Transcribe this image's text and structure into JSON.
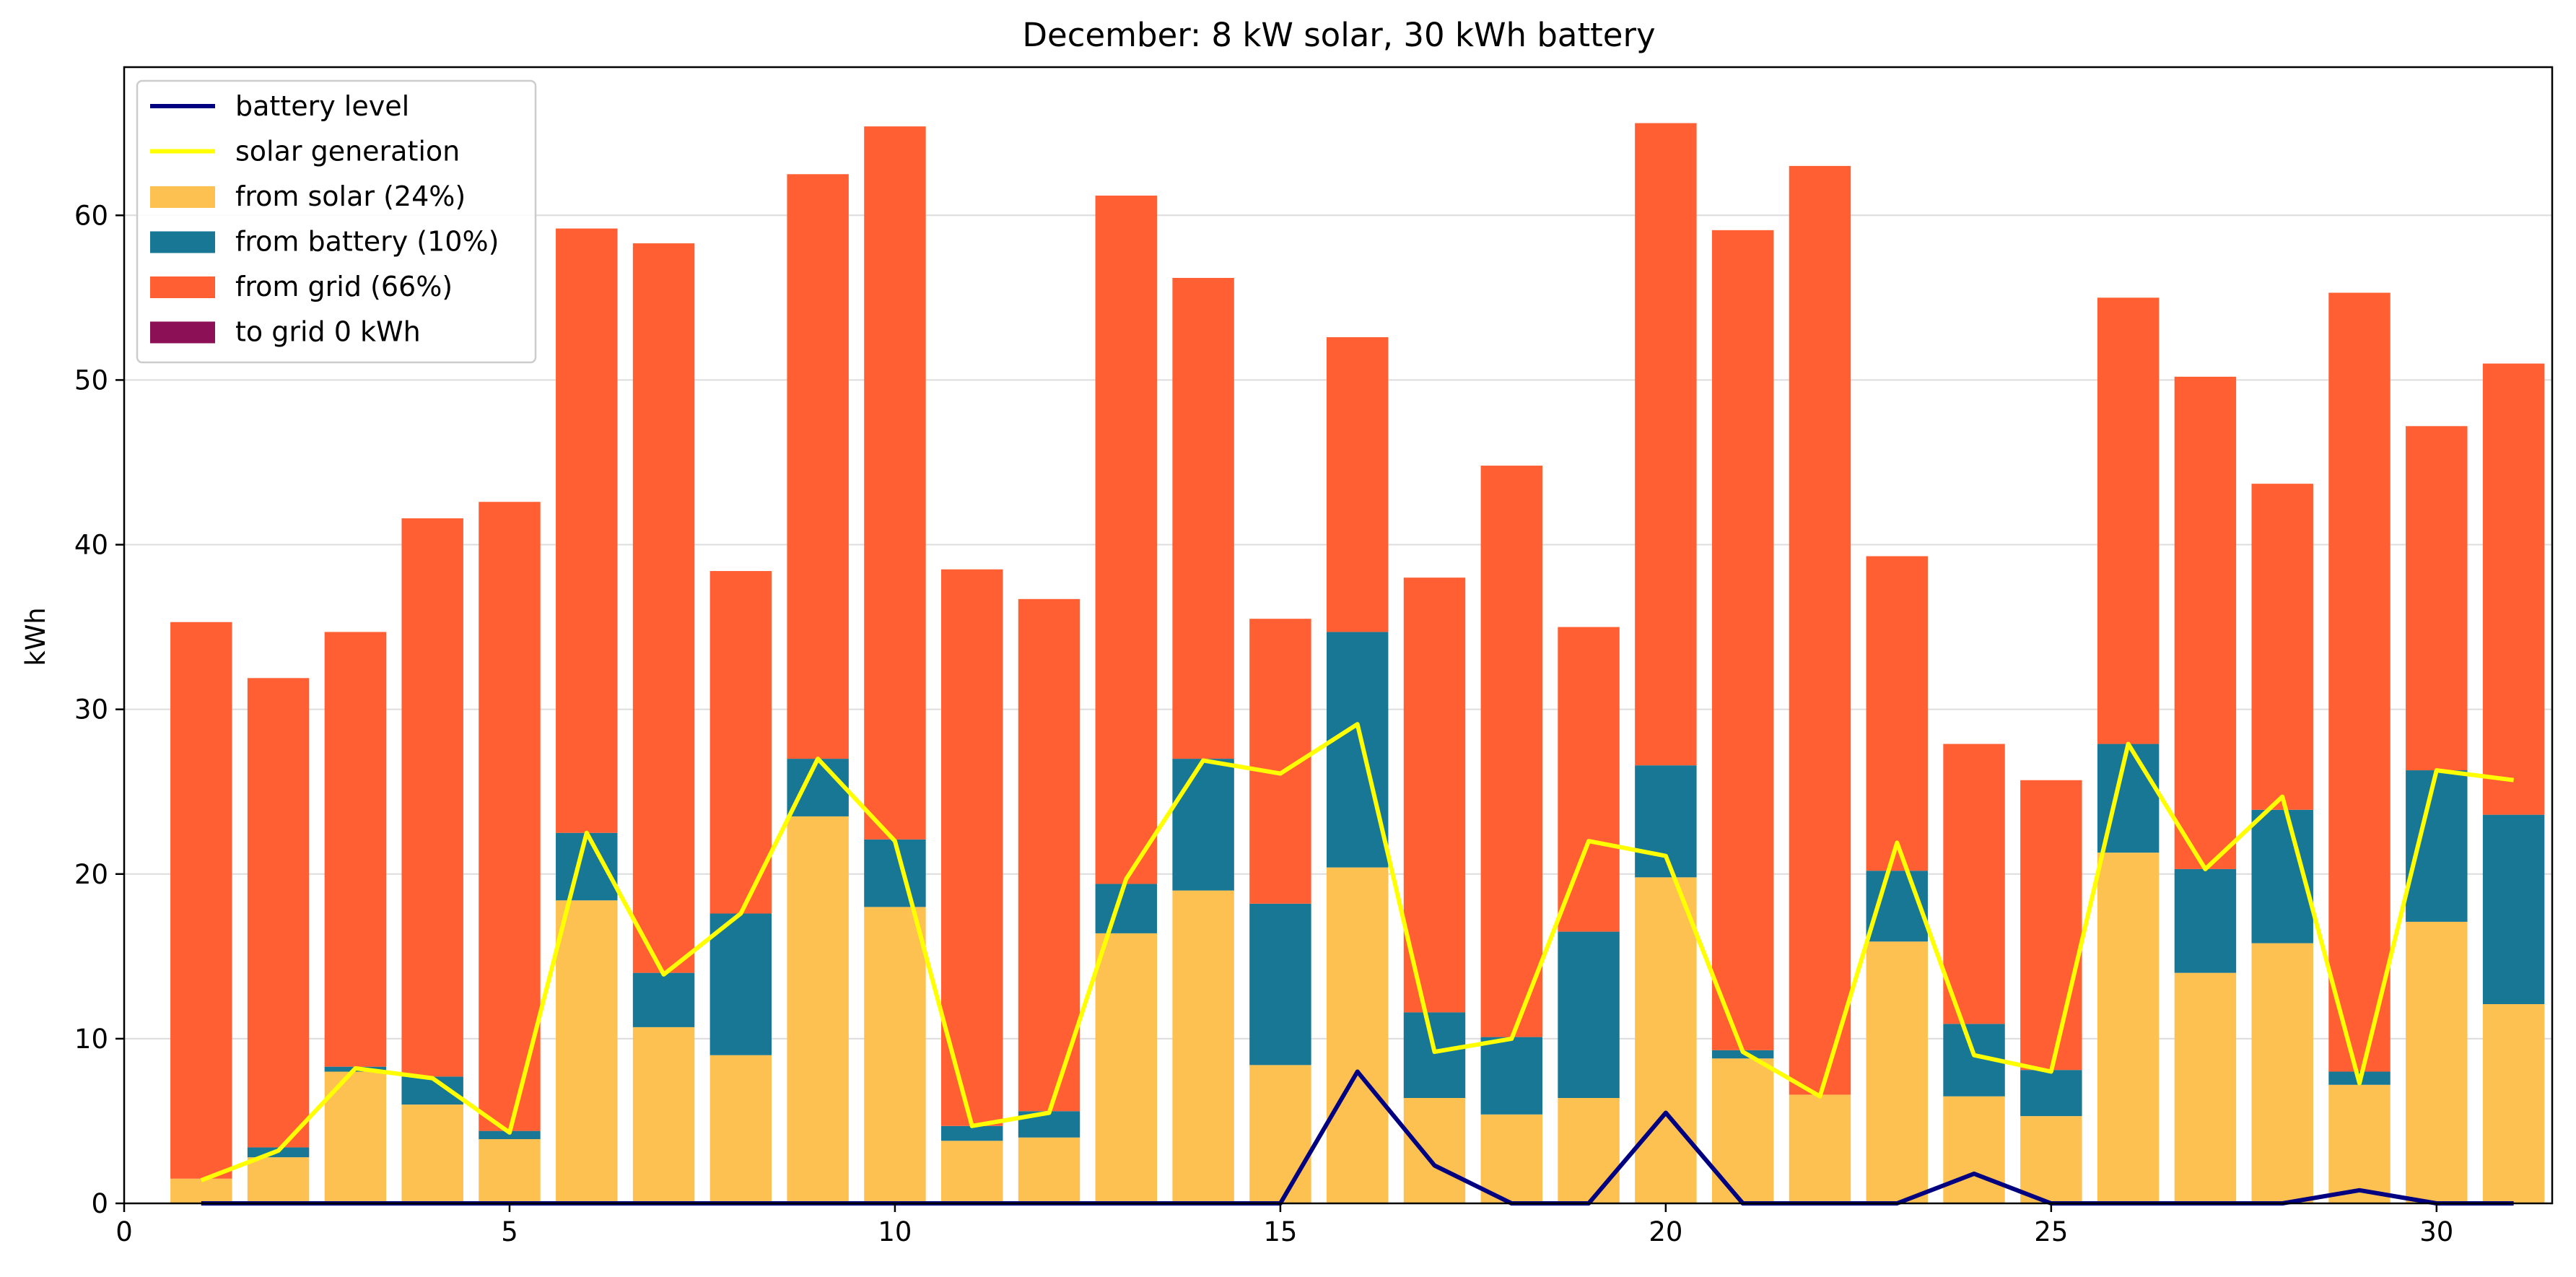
{
  "chart_data": {
    "type": "bar",
    "stacked": true,
    "title": "December: 8 kW solar, 30 kWh battery",
    "xlabel": "",
    "ylabel": "kWh",
    "xlim": [
      0,
      31.5
    ],
    "ylim": [
      0,
      69
    ],
    "xticks": [
      0,
      5,
      10,
      15,
      20,
      25,
      30
    ],
    "yticks": [
      0,
      10,
      20,
      30,
      40,
      50,
      60
    ],
    "grid": "y",
    "legend_position": "top-left",
    "x": [
      1,
      2,
      3,
      4,
      5,
      6,
      7,
      8,
      9,
      10,
      11,
      12,
      13,
      14,
      15,
      16,
      17,
      18,
      19,
      20,
      21,
      22,
      23,
      24,
      25,
      26,
      27,
      28,
      29,
      30,
      31
    ],
    "bar_series": [
      {
        "name": "from solar (24%)",
        "color": "#fdc152",
        "values": [
          1.5,
          2.8,
          8.0,
          6.0,
          3.9,
          18.4,
          10.7,
          9.0,
          23.5,
          18.0,
          3.8,
          4.0,
          16.4,
          19.0,
          8.4,
          20.4,
          6.4,
          5.4,
          6.4,
          19.8,
          8.8,
          6.6,
          15.9,
          6.5,
          5.3,
          21.3,
          14.0,
          15.8,
          7.2,
          17.1,
          12.1
        ]
      },
      {
        "name": "from battery (10%)",
        "color": "#177795",
        "values": [
          0.0,
          0.6,
          0.3,
          1.7,
          0.5,
          4.1,
          3.3,
          8.6,
          3.5,
          4.1,
          0.9,
          1.6,
          3.0,
          8.0,
          9.8,
          14.3,
          5.2,
          4.7,
          10.1,
          6.8,
          0.5,
          0.0,
          4.3,
          4.4,
          2.8,
          6.6,
          6.3,
          8.1,
          0.8,
          9.2,
          11.5
        ]
      },
      {
        "name": "from grid (66%)",
        "color": "#ff5f33",
        "values": [
          33.8,
          28.5,
          26.4,
          33.9,
          38.2,
          36.7,
          44.3,
          20.8,
          35.5,
          43.3,
          33.8,
          31.1,
          41.8,
          29.2,
          17.3,
          17.9,
          26.4,
          34.7,
          18.5,
          39.0,
          49.8,
          56.4,
          19.1,
          17.0,
          17.6,
          27.1,
          29.9,
          19.8,
          47.3,
          20.9,
          27.4
        ]
      },
      {
        "name": "to grid 0 kWh",
        "color": "#8b1056",
        "values": [
          0,
          0,
          0,
          0,
          0,
          0,
          0,
          0,
          0,
          0,
          0,
          0,
          0,
          0,
          0,
          0,
          0,
          0,
          0,
          0,
          0,
          0,
          0,
          0,
          0,
          0,
          0,
          0,
          0,
          0,
          0
        ]
      }
    ],
    "line_series": [
      {
        "name": "battery level",
        "color": "#000080",
        "values": [
          0,
          0,
          0,
          0,
          0,
          0,
          0,
          0,
          0,
          0,
          0,
          0,
          0,
          0,
          0,
          8.0,
          2.3,
          0,
          0,
          5.5,
          0,
          0,
          0,
          1.8,
          0,
          0,
          0,
          0,
          0.8,
          0,
          0
        ]
      },
      {
        "name": "solar generation",
        "color": "#ffff00",
        "values": [
          1.4,
          3.2,
          8.2,
          7.6,
          4.3,
          22.5,
          13.9,
          17.6,
          27.0,
          22.0,
          4.7,
          5.5,
          19.7,
          26.9,
          26.1,
          29.1,
          9.2,
          10.0,
          22.0,
          21.1,
          9.2,
          6.5,
          21.9,
          9.0,
          8.0,
          27.9,
          20.3,
          24.7,
          7.3,
          26.3,
          25.7
        ]
      }
    ]
  }
}
